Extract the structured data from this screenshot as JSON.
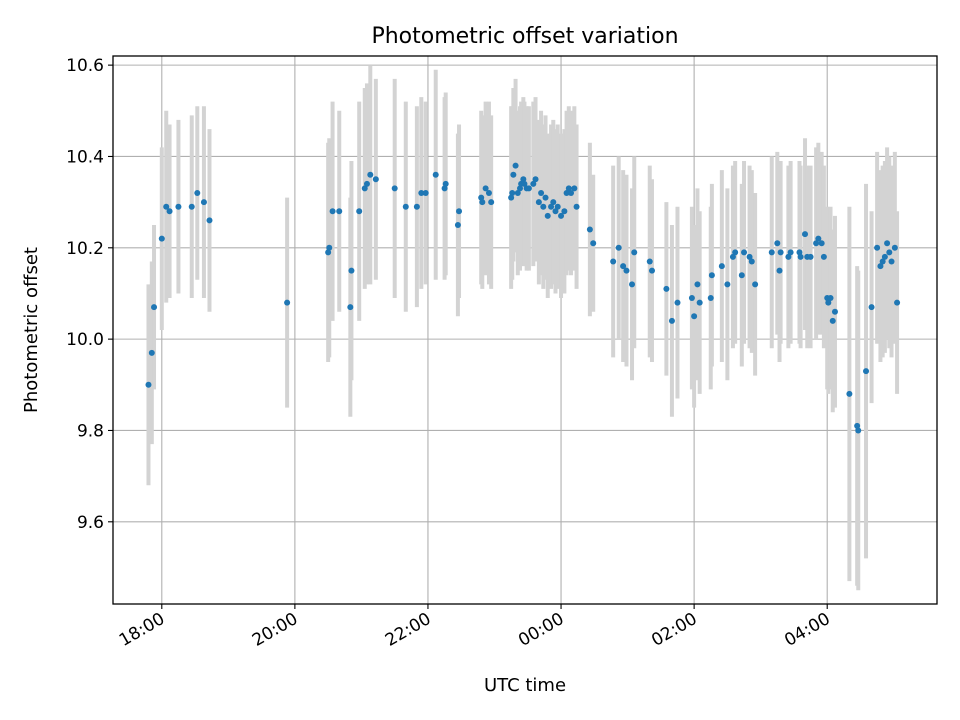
{
  "chart_data": {
    "type": "scatter",
    "title": "Photometric offset variation",
    "xlabel": "UTC time",
    "ylabel": "Photometric offset",
    "x_ticks": [
      "18:00",
      "20:00",
      "22:00",
      "00:00",
      "02:00",
      "04:00"
    ],
    "y_ticks": [
      "9.6",
      "9.8",
      "10.0",
      "10.2",
      "10.4",
      "10.6"
    ],
    "xlim": [
      "17:16",
      "05:39"
    ],
    "ylim": [
      9.42,
      10.62
    ],
    "grid": true,
    "colors": {
      "marker": "#1f77b4",
      "errorbar": "#d3d3d3",
      "grid": "#b0b0b0"
    },
    "points": [
      {
        "t": "17:48",
        "y": 9.9,
        "err": 0.22
      },
      {
        "t": "17:51",
        "y": 9.97,
        "err": 0.2
      },
      {
        "t": "17:53",
        "y": 10.07,
        "err": 0.18
      },
      {
        "t": "18:00",
        "y": 10.22,
        "err": 0.2
      },
      {
        "t": "18:04",
        "y": 10.29,
        "err": 0.21
      },
      {
        "t": "18:07",
        "y": 10.28,
        "err": 0.19
      },
      {
        "t": "18:15",
        "y": 10.29,
        "err": 0.19
      },
      {
        "t": "18:27",
        "y": 10.29,
        "err": 0.2
      },
      {
        "t": "18:32",
        "y": 10.32,
        "err": 0.19
      },
      {
        "t": "18:38",
        "y": 10.3,
        "err": 0.21
      },
      {
        "t": "18:43",
        "y": 10.26,
        "err": 0.2
      },
      {
        "t": "19:53",
        "y": 10.08,
        "err": 0.23
      },
      {
        "t": "20:30",
        "y": 10.19,
        "err": 0.24
      },
      {
        "t": "20:31",
        "y": 10.2,
        "err": 0.24
      },
      {
        "t": "20:34",
        "y": 10.28,
        "err": 0.24
      },
      {
        "t": "20:40",
        "y": 10.28,
        "err": 0.22
      },
      {
        "t": "20:50",
        "y": 10.07,
        "err": 0.24
      },
      {
        "t": "20:51",
        "y": 10.15,
        "err": 0.24
      },
      {
        "t": "20:58",
        "y": 10.28,
        "err": 0.24
      },
      {
        "t": "21:03",
        "y": 10.33,
        "err": 0.22
      },
      {
        "t": "21:05",
        "y": 10.34,
        "err": 0.22
      },
      {
        "t": "21:08",
        "y": 10.36,
        "err": 0.24
      },
      {
        "t": "21:13",
        "y": 10.35,
        "err": 0.22
      },
      {
        "t": "21:30",
        "y": 10.33,
        "err": 0.24
      },
      {
        "t": "21:40",
        "y": 10.29,
        "err": 0.23
      },
      {
        "t": "21:50",
        "y": 10.29,
        "err": 0.22
      },
      {
        "t": "21:54",
        "y": 10.32,
        "err": 0.21
      },
      {
        "t": "21:58",
        "y": 10.32,
        "err": 0.2
      },
      {
        "t": "22:07",
        "y": 10.36,
        "err": 0.23
      },
      {
        "t": "22:15",
        "y": 10.33,
        "err": 0.2
      },
      {
        "t": "22:16",
        "y": 10.34,
        "err": 0.2
      },
      {
        "t": "22:27",
        "y": 10.25,
        "err": 0.2
      },
      {
        "t": "22:28",
        "y": 10.28,
        "err": 0.19
      },
      {
        "t": "22:48",
        "y": 10.31,
        "err": 0.19
      },
      {
        "t": "22:49",
        "y": 10.3,
        "err": 0.19
      },
      {
        "t": "22:52",
        "y": 10.33,
        "err": 0.19
      },
      {
        "t": "22:55",
        "y": 10.32,
        "err": 0.2
      },
      {
        "t": "22:57",
        "y": 10.3,
        "err": 0.19
      },
      {
        "t": "23:15",
        "y": 10.31,
        "err": 0.2
      },
      {
        "t": "23:16",
        "y": 10.32,
        "err": 0.19
      },
      {
        "t": "23:17",
        "y": 10.36,
        "err": 0.19
      },
      {
        "t": "23:19",
        "y": 10.38,
        "err": 0.19
      },
      {
        "t": "23:21",
        "y": 10.32,
        "err": 0.18
      },
      {
        "t": "23:23",
        "y": 10.33,
        "err": 0.18
      },
      {
        "t": "23:24",
        "y": 10.34,
        "err": 0.18
      },
      {
        "t": "23:26",
        "y": 10.35,
        "err": 0.18
      },
      {
        "t": "23:27",
        "y": 10.34,
        "err": 0.18
      },
      {
        "t": "23:29",
        "y": 10.33,
        "err": 0.18
      },
      {
        "t": "23:31",
        "y": 10.33,
        "err": 0.18
      },
      {
        "t": "23:35",
        "y": 10.34,
        "err": 0.18
      },
      {
        "t": "23:37",
        "y": 10.35,
        "err": 0.18
      },
      {
        "t": "23:40",
        "y": 10.3,
        "err": 0.18
      },
      {
        "t": "23:42",
        "y": 10.32,
        "err": 0.18
      },
      {
        "t": "23:44",
        "y": 10.29,
        "err": 0.18
      },
      {
        "t": "23:46",
        "y": 10.31,
        "err": 0.18
      },
      {
        "t": "23:48",
        "y": 10.27,
        "err": 0.18
      },
      {
        "t": "23:51",
        "y": 10.29,
        "err": 0.18
      },
      {
        "t": "23:53",
        "y": 10.3,
        "err": 0.18
      },
      {
        "t": "23:55",
        "y": 10.28,
        "err": 0.18
      },
      {
        "t": "23:57",
        "y": 10.29,
        "err": 0.18
      },
      {
        "t": "00:00",
        "y": 10.27,
        "err": 0.18
      },
      {
        "t": "00:03",
        "y": 10.28,
        "err": 0.18
      },
      {
        "t": "00:05",
        "y": 10.32,
        "err": 0.18
      },
      {
        "t": "00:07",
        "y": 10.33,
        "err": 0.18
      },
      {
        "t": "00:09",
        "y": 10.32,
        "err": 0.18
      },
      {
        "t": "00:12",
        "y": 10.33,
        "err": 0.18
      },
      {
        "t": "00:14",
        "y": 10.29,
        "err": 0.18
      },
      {
        "t": "00:26",
        "y": 10.24,
        "err": 0.19
      },
      {
        "t": "00:29",
        "y": 10.21,
        "err": 0.15
      },
      {
        "t": "00:47",
        "y": 10.17,
        "err": 0.21
      },
      {
        "t": "00:52",
        "y": 10.2,
        "err": 0.2
      },
      {
        "t": "00:56",
        "y": 10.16,
        "err": 0.21
      },
      {
        "t": "00:59",
        "y": 10.15,
        "err": 0.21
      },
      {
        "t": "01:04",
        "y": 10.12,
        "err": 0.21
      },
      {
        "t": "01:06",
        "y": 10.19,
        "err": 0.21
      },
      {
        "t": "01:20",
        "y": 10.17,
        "err": 0.21
      },
      {
        "t": "01:22",
        "y": 10.15,
        "err": 0.2
      },
      {
        "t": "01:35",
        "y": 10.11,
        "err": 0.19
      },
      {
        "t": "01:40",
        "y": 10.04,
        "err": 0.21
      },
      {
        "t": "01:45",
        "y": 10.08,
        "err": 0.21
      },
      {
        "t": "01:58",
        "y": 10.09,
        "err": 0.2
      },
      {
        "t": "02:00",
        "y": 10.05,
        "err": 0.2
      },
      {
        "t": "02:03",
        "y": 10.12,
        "err": 0.21
      },
      {
        "t": "02:05",
        "y": 10.08,
        "err": 0.2
      },
      {
        "t": "02:15",
        "y": 10.09,
        "err": 0.2
      },
      {
        "t": "02:16",
        "y": 10.14,
        "err": 0.2
      },
      {
        "t": "02:25",
        "y": 10.16,
        "err": 0.21
      },
      {
        "t": "02:30",
        "y": 10.12,
        "err": 0.21
      },
      {
        "t": "02:35",
        "y": 10.18,
        "err": 0.2
      },
      {
        "t": "02:37",
        "y": 10.19,
        "err": 0.2
      },
      {
        "t": "02:43",
        "y": 10.14,
        "err": 0.2
      },
      {
        "t": "02:45",
        "y": 10.19,
        "err": 0.2
      },
      {
        "t": "02:50",
        "y": 10.18,
        "err": 0.2
      },
      {
        "t": "02:52",
        "y": 10.17,
        "err": 0.2
      },
      {
        "t": "02:55",
        "y": 10.12,
        "err": 0.2
      },
      {
        "t": "03:10",
        "y": 10.19,
        "err": 0.21
      },
      {
        "t": "03:15",
        "y": 10.21,
        "err": 0.2
      },
      {
        "t": "03:17",
        "y": 10.15,
        "err": 0.2
      },
      {
        "t": "03:18",
        "y": 10.19,
        "err": 0.2
      },
      {
        "t": "03:25",
        "y": 10.18,
        "err": 0.2
      },
      {
        "t": "03:27",
        "y": 10.19,
        "err": 0.2
      },
      {
        "t": "03:35",
        "y": 10.19,
        "err": 0.2
      },
      {
        "t": "03:36",
        "y": 10.18,
        "err": 0.2
      },
      {
        "t": "03:40",
        "y": 10.23,
        "err": 0.21
      },
      {
        "t": "03:42",
        "y": 10.18,
        "err": 0.2
      },
      {
        "t": "03:45",
        "y": 10.18,
        "err": 0.2
      },
      {
        "t": "03:50",
        "y": 10.21,
        "err": 0.21
      },
      {
        "t": "03:52",
        "y": 10.22,
        "err": 0.21
      },
      {
        "t": "03:55",
        "y": 10.21,
        "err": 0.2
      },
      {
        "t": "03:57",
        "y": 10.18,
        "err": 0.2
      },
      {
        "t": "04:00",
        "y": 10.09,
        "err": 0.2
      },
      {
        "t": "04:01",
        "y": 10.08,
        "err": 0.2
      },
      {
        "t": "04:03",
        "y": 10.09,
        "err": 0.2
      },
      {
        "t": "04:05",
        "y": 10.04,
        "err": 0.2
      },
      {
        "t": "04:07",
        "y": 10.06,
        "err": 0.21
      },
      {
        "t": "04:20",
        "y": 9.88,
        "err": 0.41
      },
      {
        "t": "04:27",
        "y": 9.81,
        "err": 0.35
      },
      {
        "t": "04:28",
        "y": 9.8,
        "err": 0.35
      },
      {
        "t": "04:35",
        "y": 9.93,
        "err": 0.41
      },
      {
        "t": "04:40",
        "y": 10.07,
        "err": 0.21
      },
      {
        "t": "04:45",
        "y": 10.2,
        "err": 0.21
      },
      {
        "t": "04:48",
        "y": 10.16,
        "err": 0.21
      },
      {
        "t": "04:50",
        "y": 10.17,
        "err": 0.21
      },
      {
        "t": "04:52",
        "y": 10.18,
        "err": 0.21
      },
      {
        "t": "04:54",
        "y": 10.21,
        "err": 0.21
      },
      {
        "t": "04:56",
        "y": 10.19,
        "err": 0.21
      },
      {
        "t": "04:58",
        "y": 10.17,
        "err": 0.21
      },
      {
        "t": "05:01",
        "y": 10.2,
        "err": 0.21
      },
      {
        "t": "05:03",
        "y": 10.08,
        "err": 0.2
      }
    ]
  }
}
